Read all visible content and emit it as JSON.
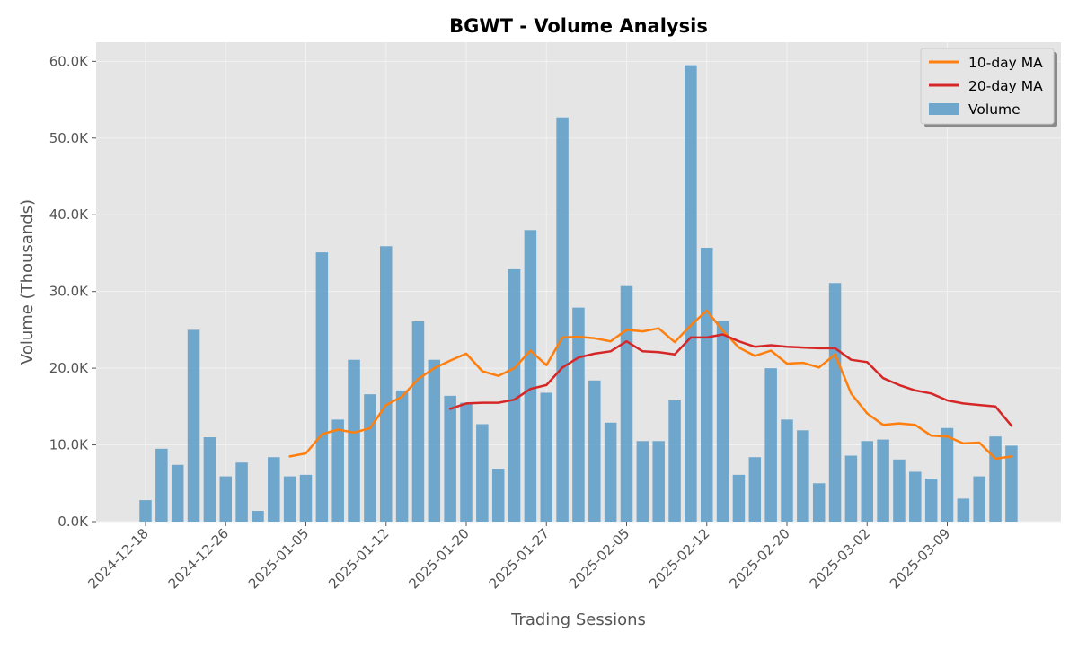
{
  "chart_data": {
    "type": "bar",
    "title": "BGWT - Volume Analysis",
    "xlabel": "Trading Sessions",
    "ylabel": "Volume (Thousands)",
    "ylim": [
      0,
      62500
    ],
    "yticks": [
      0,
      10000,
      20000,
      30000,
      40000,
      50000,
      60000
    ],
    "ytick_labels": [
      "0.0K",
      "10.0K",
      "20.0K",
      "30.0K",
      "40.0K",
      "50.0K",
      "60.0K"
    ],
    "xtick_labels": [
      "2024-12-18",
      "2024-12-26",
      "2025-01-05",
      "2025-01-12",
      "2025-01-20",
      "2025-01-27",
      "2025-02-05",
      "2025-02-12",
      "2025-02-20",
      "2025-03-02",
      "2025-03-09"
    ],
    "xtick_session_index": [
      0,
      5,
      10,
      15,
      20,
      25,
      30,
      35,
      40,
      45,
      50
    ],
    "grid": true,
    "legend_position": "top-right",
    "colors": {
      "volume": "#5b9bc8",
      "ma10": "#ff7f0e",
      "ma20": "#d62728",
      "plot_bg": "#e5e5e5"
    },
    "series": [
      {
        "name": "Volume",
        "type": "bar",
        "values": [
          2800,
          9500,
          7400,
          25000,
          11000,
          5900,
          7700,
          1400,
          8400,
          5900,
          6100,
          35100,
          13300,
          21100,
          16600,
          35900,
          17100,
          26100,
          21100,
          16400,
          15500,
          12700,
          6900,
          32900,
          38000,
          16800,
          52700,
          27900,
          18400,
          12900,
          30700,
          10500,
          10500,
          15800,
          59500,
          35700,
          26100,
          6100,
          8400,
          20000,
          13300,
          11900,
          5000,
          31100,
          8600,
          10500,
          10700,
          8100,
          6500,
          5600,
          12200,
          3000,
          5900,
          11100,
          9900
        ]
      },
      {
        "name": "10-day MA",
        "type": "line",
        "values": [
          null,
          null,
          null,
          null,
          null,
          null,
          null,
          null,
          null,
          8500,
          8900,
          11400,
          12000,
          11600,
          12200,
          15200,
          16300,
          18600,
          20000,
          21000,
          21900,
          19600,
          19000,
          20000,
          22300,
          20400,
          24000,
          24100,
          23900,
          23500,
          25000,
          24800,
          25200,
          23400,
          25600,
          27500,
          24900,
          22700,
          21600,
          22300,
          20600,
          20700,
          20100,
          21800,
          16700,
          14100,
          12600,
          12800,
          12600,
          11200,
          11100,
          10200,
          10300,
          8200,
          8500
        ]
      },
      {
        "name": "20-day MA",
        "type": "line",
        "values": [
          null,
          null,
          null,
          null,
          null,
          null,
          null,
          null,
          null,
          null,
          null,
          null,
          null,
          null,
          null,
          null,
          null,
          null,
          null,
          14700,
          15400,
          15500,
          15500,
          15900,
          17300,
          17800,
          20100,
          21400,
          21900,
          22200,
          23500,
          22200,
          22100,
          21800,
          24000,
          24000,
          24400,
          23500,
          22800,
          23000,
          22800,
          22700,
          22600,
          22600,
          21100,
          20800,
          18700,
          17800,
          17100,
          16700,
          15800,
          15400,
          15200,
          15000,
          12500
        ]
      }
    ]
  }
}
